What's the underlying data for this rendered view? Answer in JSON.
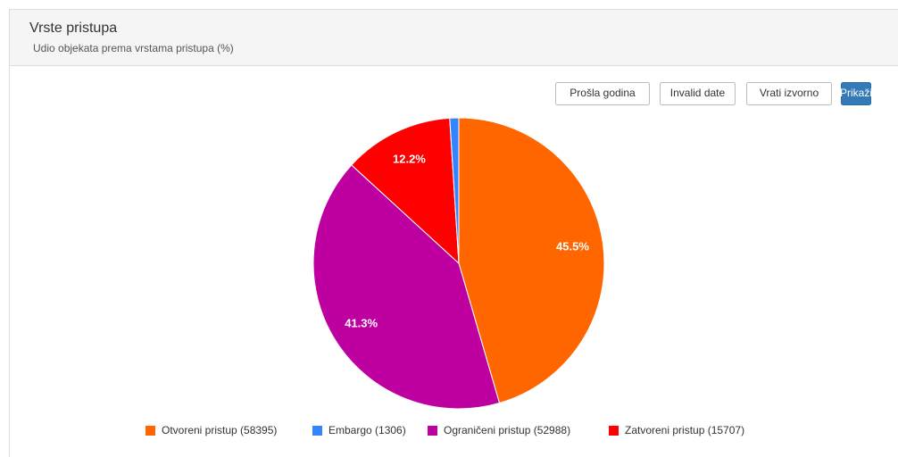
{
  "panel": {
    "title": "Vrste pristupa",
    "subtitle": "Udio objekata prema vrstama pristupa (%)",
    "buttons": [
      "Prošla godina",
      "Invalid date",
      "Vrati izvorno",
      "Prikaži"
    ]
  },
  "chart_data": {
    "type": "pie",
    "categories": [
      "Otvoreni pristup (58395)",
      "Embargo (1306)",
      "Ograničeni pristup (52988)",
      "Zatvoreni pristup (15707)"
    ],
    "values": [
      45.5,
      1.0,
      41.3,
      12.2
    ],
    "value_labels": [
      "45.5%",
      null,
      "41.3%",
      "12.2%"
    ],
    "colors": [
      "#ff6600",
      "#3385ff",
      "#bf00a0",
      "#ff0000"
    ],
    "legend": "bottom"
  }
}
